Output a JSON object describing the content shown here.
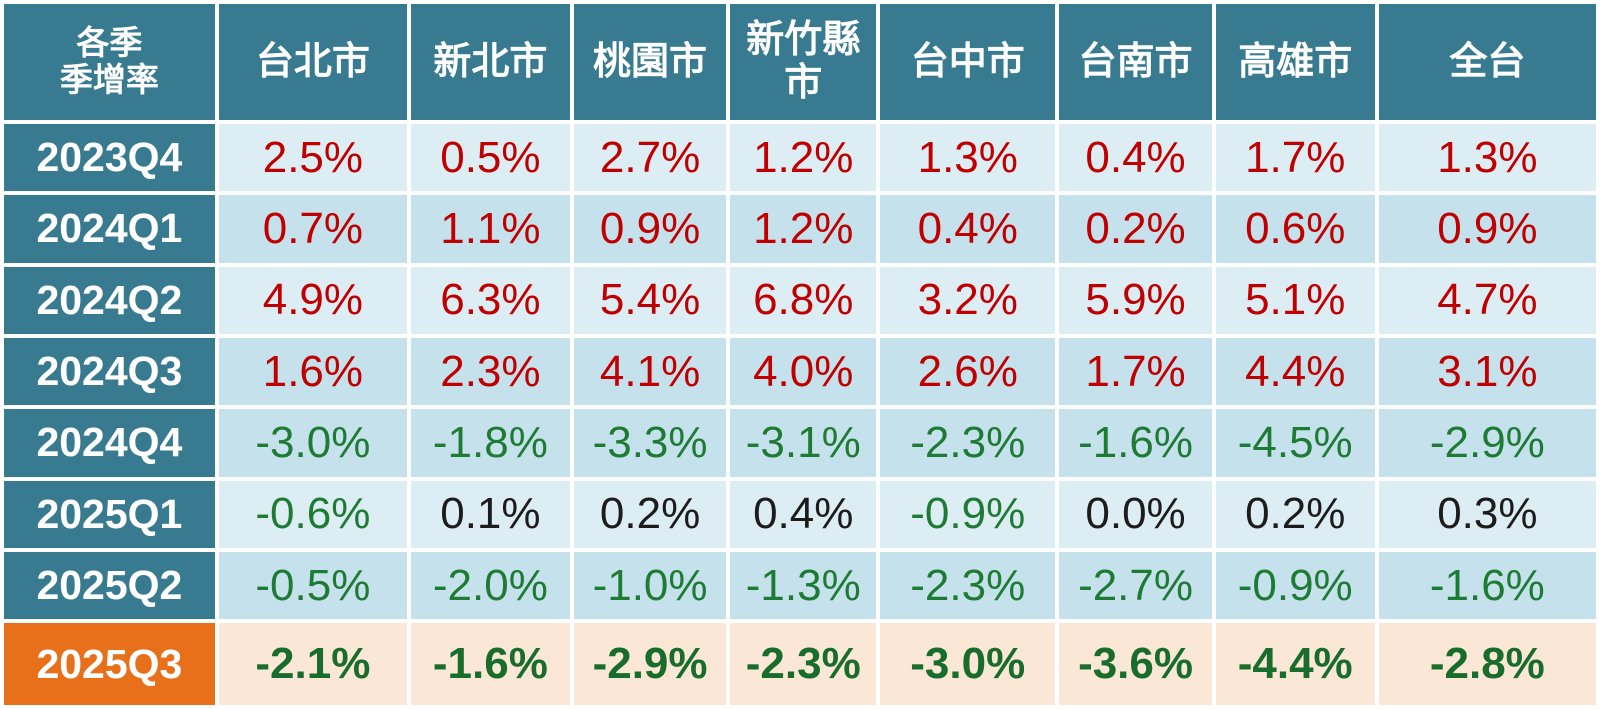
{
  "colors": {
    "teal": "#387b91",
    "row_light": "#ddedf4",
    "row_dark": "#c5e2ec",
    "orange": "#e8701b",
    "peach": "#fbe7d6",
    "up": "#c00000",
    "down": "#1e7b34",
    "flat": "#1c1c1c",
    "highlight_value": "#186c2c"
  },
  "chart_data": {
    "type": "table",
    "corner_label": "各季\n季增率",
    "unit": "%",
    "columns": [
      "台北市",
      "新北市",
      "桃園市",
      "新竹縣市",
      "台中市",
      "台南市",
      "高雄市",
      "全台"
    ],
    "rows": [
      {
        "label": "2023Q4",
        "shade": "light",
        "values": [
          2.5,
          0.5,
          2.7,
          1.2,
          1.3,
          0.4,
          1.7,
          1.3
        ],
        "tones": [
          "up",
          "up",
          "up",
          "up",
          "up",
          "up",
          "up",
          "up"
        ]
      },
      {
        "label": "2024Q1",
        "shade": "dark",
        "values": [
          0.7,
          1.1,
          0.9,
          1.2,
          0.4,
          0.2,
          0.6,
          0.9
        ],
        "tones": [
          "up",
          "up",
          "up",
          "up",
          "up",
          "up",
          "up",
          "up"
        ]
      },
      {
        "label": "2024Q2",
        "shade": "light",
        "values": [
          4.9,
          6.3,
          5.4,
          6.8,
          3.2,
          5.9,
          5.1,
          4.7
        ],
        "tones": [
          "up",
          "up",
          "up",
          "up",
          "up",
          "up",
          "up",
          "up"
        ]
      },
      {
        "label": "2024Q3",
        "shade": "dark",
        "values": [
          1.6,
          2.3,
          4.1,
          4.0,
          2.6,
          1.7,
          4.4,
          3.1
        ],
        "tones": [
          "up",
          "up",
          "up",
          "up",
          "up",
          "up",
          "up",
          "up"
        ]
      },
      {
        "label": "2024Q4",
        "shade": "dark",
        "values": [
          -3.0,
          -1.8,
          -3.3,
          -3.1,
          -2.3,
          -1.6,
          -4.5,
          -2.9
        ],
        "tones": [
          "down",
          "down",
          "down",
          "down",
          "down",
          "down",
          "down",
          "down"
        ]
      },
      {
        "label": "2025Q1",
        "shade": "light",
        "values": [
          -0.6,
          0.1,
          0.2,
          0.4,
          -0.9,
          0.0,
          0.2,
          0.3
        ],
        "tones": [
          "down",
          "flat",
          "flat",
          "flat",
          "down",
          "flat",
          "flat",
          "flat"
        ]
      },
      {
        "label": "2025Q2",
        "shade": "dark",
        "values": [
          -0.5,
          -2.0,
          -1.0,
          -1.3,
          -2.3,
          -2.7,
          -0.9,
          -1.6
        ],
        "tones": [
          "down",
          "down",
          "down",
          "down",
          "down",
          "down",
          "down",
          "down"
        ]
      },
      {
        "label": "2025Q3",
        "shade": "highlight",
        "highlight": true,
        "values": [
          -2.1,
          -1.6,
          -2.9,
          -2.3,
          -3.0,
          -3.6,
          -4.4,
          -2.8
        ],
        "tones": [
          "down",
          "down",
          "down",
          "down",
          "down",
          "down",
          "down",
          "down"
        ]
      }
    ]
  }
}
